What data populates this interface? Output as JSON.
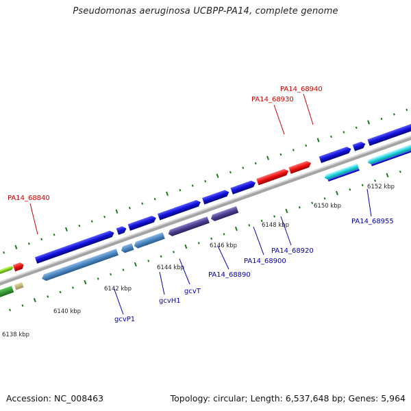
{
  "title": "Pseudomonas aeruginosa UCBPP-PA14, complete genome",
  "footer": {
    "accession": "Accession: NC_008463",
    "topology": "Topology: circular; Length: 6,537,648 bp; Genes: 5,964"
  },
  "kbp_ticks": [
    "6138 kbp",
    "6140 kbp",
    "6142 kbp",
    "6144 kbp",
    "6146 kbp",
    "6148 kbp",
    "6150 kbp",
    "6152 kbp"
  ],
  "gene_labels": {
    "top": [
      "PA14_68840",
      "PA14_68930",
      "PA14_68940"
    ],
    "bottom": [
      "gcvP1",
      "gcvH1",
      "gcvT",
      "PA14_68890",
      "PA14_68900",
      "PA14_68920",
      "PA14_68955"
    ]
  },
  "colors": {
    "backbone": "#9a9a9a",
    "forward_gene": "#1010d8",
    "reverse_gene": "#4a86c0",
    "purple_gene": "#4a3f8c",
    "red_gene": "#ee1111",
    "green_gene": "#8ad820",
    "cyan_gene": "#22d6e0",
    "label_red": "#cc0000",
    "label_blue": "#0000aa",
    "tick": "#1a7a1a"
  }
}
